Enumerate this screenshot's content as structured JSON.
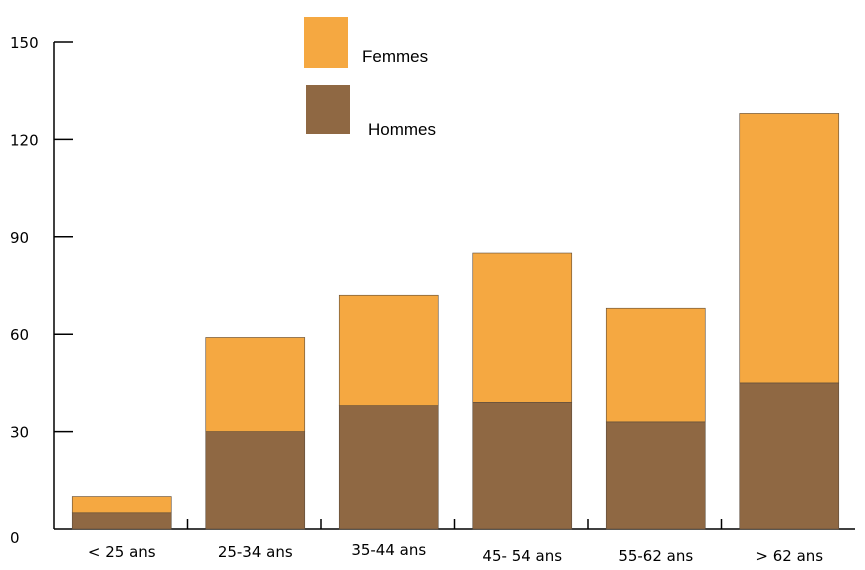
{
  "chart_data": {
    "type": "bar",
    "stacked": true,
    "categories": [
      "< 25 ans",
      "25-34 ans",
      "35-44 ans",
      "45- 54 ans",
      "55-62 ans",
      "> 62 ans"
    ],
    "series": [
      {
        "name": "Hommes",
        "color": "#8f6843",
        "values": [
          5,
          30,
          38,
          39,
          33,
          45
        ]
      },
      {
        "name": "Femmes",
        "color": "#f5a841",
        "values": [
          5,
          29,
          34,
          46,
          35,
          83
        ]
      }
    ],
    "yticks": [
      0,
      30,
      60,
      90,
      120,
      150
    ],
    "ylim": [
      0,
      150
    ],
    "grid": false,
    "legend": {
      "position": "top-center",
      "order": [
        "Femmes",
        "Hommes"
      ]
    },
    "title": "",
    "xlabel": "",
    "ylabel": ""
  }
}
